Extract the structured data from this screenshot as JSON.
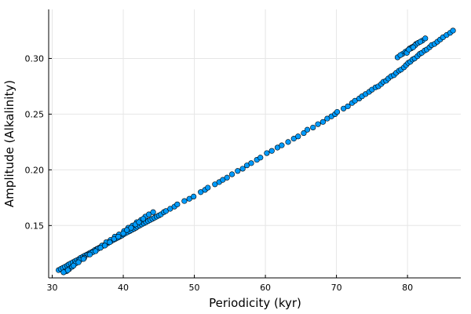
{
  "chart_data": {
    "type": "scatter",
    "title": "",
    "xlabel": "Periodicity (kyr)",
    "ylabel": "Amplitude (Alkalinity)",
    "xlim": [
      29.5,
      87.5
    ],
    "ylim": [
      0.103,
      0.344
    ],
    "xticks": [
      30,
      40,
      50,
      60,
      70,
      80
    ],
    "yticks": [
      0.15,
      0.2,
      0.25,
      0.3
    ],
    "xtick_labels": [
      "30",
      "40",
      "50",
      "60",
      "70",
      "80"
    ],
    "ytick_labels": [
      "0.15",
      "0.20",
      "0.25",
      "0.30"
    ],
    "grid": true,
    "legend": "none",
    "marker_color": "#009AFA",
    "series": [
      {
        "x": [
          30.9,
          31.2,
          31.5,
          31.8,
          32.1,
          32.3,
          32.6,
          32.9,
          33.2,
          33.5,
          33.8,
          34.0,
          34.3,
          34.6,
          34.9,
          35.2,
          35.5,
          35.8,
          36.0,
          36.3,
          36.6,
          36.9,
          37.2,
          37.5,
          37.8,
          38.0,
          38.3,
          38.6,
          38.9,
          39.2,
          39.5,
          39.8,
          40.0,
          40.3,
          40.6,
          40.9,
          41.2,
          41.5,
          41.8,
          42.0,
          42.3,
          42.6,
          42.9,
          43.2,
          43.5,
          43.8,
          44.1,
          44.4,
          44.7,
          45.0,
          45.3,
          45.7,
          46.0,
          46.6,
          47.2,
          47.6,
          48.6,
          49.3,
          49.9,
          50.9,
          51.5,
          51.9,
          52.9,
          53.5,
          54.0,
          54.6,
          55.3,
          56.1,
          56.8,
          57.4,
          58.0,
          58.8,
          59.3,
          60.2,
          60.9,
          61.7,
          62.3,
          63.2,
          64.0,
          64.6,
          65.4,
          65.9,
          66.7,
          67.4,
          68.1,
          68.7,
          69.3,
          69.8,
          70.1,
          71.0,
          71.6,
          72.2,
          72.6,
          73.2,
          73.6,
          74.1,
          74.6,
          75.0,
          75.5,
          75.9,
          76.3,
          76.6,
          77.0,
          77.3,
          77.7,
          78.1,
          78.4,
          78.8,
          79.1,
          79.5,
          79.8,
          80.1,
          80.4,
          80.7,
          81.0,
          81.4,
          81.7,
          82.0,
          82.4,
          82.7,
          83.1,
          83.4,
          83.8,
          84.2,
          84.6,
          85.0,
          85.5,
          86.0,
          86.4,
          32.0,
          32.4,
          32.8,
          33.3,
          33.9,
          34.5,
          35.1,
          35.7,
          36.4,
          37.0,
          37.6,
          38.2,
          38.8,
          39.4,
          40.1,
          40.7,
          41.3,
          41.9,
          42.5,
          43.1,
          43.6,
          44.2,
          31.6,
          32.2,
          33.0,
          33.7,
          34.4,
          35.3,
          36.1,
          36.8,
          37.4,
          38.1,
          38.7,
          39.3,
          40.0,
          40.5,
          41.1,
          41.7,
          42.2,
          42.8,
          79.3,
          79.7,
          80.0,
          80.3,
          80.6,
          80.9,
          81.2,
          79.9,
          80.5,
          81.1,
          80.2,
          80.8,
          81.5,
          82.1,
          78.6,
          79.0,
          81.8,
          82.5
        ],
        "y": [
          0.11,
          0.111,
          0.112,
          0.113,
          0.114,
          0.115,
          0.116,
          0.117,
          0.118,
          0.119,
          0.12,
          0.121,
          0.122,
          0.123,
          0.124,
          0.125,
          0.126,
          0.127,
          0.128,
          0.129,
          0.13,
          0.131,
          0.132,
          0.133,
          0.134,
          0.135,
          0.136,
          0.137,
          0.138,
          0.139,
          0.14,
          0.141,
          0.142,
          0.143,
          0.144,
          0.145,
          0.146,
          0.147,
          0.148,
          0.149,
          0.15,
          0.151,
          0.152,
          0.153,
          0.154,
          0.155,
          0.156,
          0.157,
          0.158,
          0.159,
          0.16,
          0.162,
          0.163,
          0.165,
          0.167,
          0.169,
          0.172,
          0.174,
          0.176,
          0.18,
          0.182,
          0.184,
          0.187,
          0.189,
          0.191,
          0.193,
          0.196,
          0.199,
          0.201,
          0.204,
          0.206,
          0.209,
          0.211,
          0.215,
          0.217,
          0.22,
          0.222,
          0.225,
          0.228,
          0.23,
          0.233,
          0.236,
          0.238,
          0.241,
          0.243,
          0.246,
          0.248,
          0.25,
          0.252,
          0.255,
          0.257,
          0.26,
          0.262,
          0.264,
          0.266,
          0.268,
          0.27,
          0.272,
          0.274,
          0.275,
          0.277,
          0.279,
          0.28,
          0.282,
          0.284,
          0.285,
          0.287,
          0.289,
          0.29,
          0.292,
          0.294,
          0.296,
          0.297,
          0.299,
          0.3,
          0.302,
          0.304,
          0.305,
          0.307,
          0.308,
          0.31,
          0.312,
          0.313,
          0.315,
          0.317,
          0.319,
          0.321,
          0.323,
          0.325,
          0.109,
          0.111,
          0.113,
          0.116,
          0.119,
          0.121,
          0.124,
          0.126,
          0.129,
          0.132,
          0.135,
          0.137,
          0.14,
          0.142,
          0.145,
          0.148,
          0.15,
          0.153,
          0.155,
          0.158,
          0.16,
          0.162,
          0.108,
          0.11,
          0.114,
          0.117,
          0.12,
          0.124,
          0.127,
          0.13,
          0.132,
          0.135,
          0.138,
          0.14,
          0.143,
          0.146,
          0.148,
          0.151,
          0.153,
          0.156,
          0.304,
          0.306,
          0.307,
          0.309,
          0.31,
          0.311,
          0.313,
          0.305,
          0.309,
          0.312,
          0.308,
          0.31,
          0.314,
          0.316,
          0.301,
          0.303,
          0.315,
          0.318
        ]
      }
    ]
  }
}
